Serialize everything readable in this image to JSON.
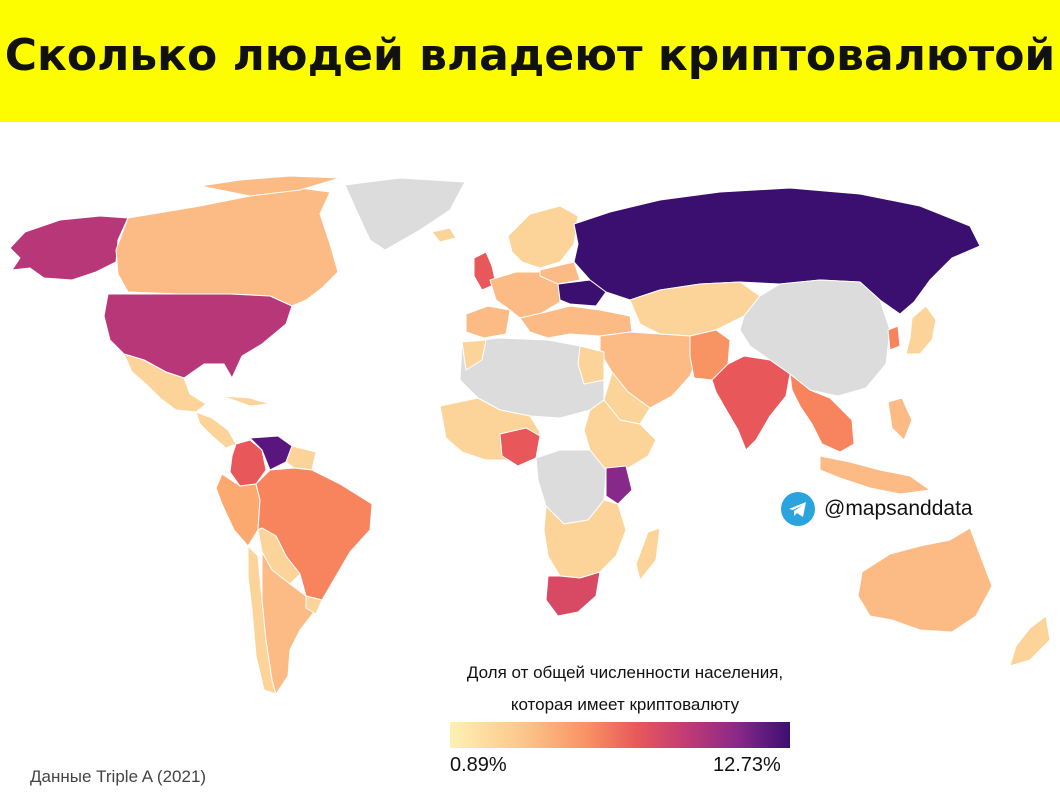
{
  "title": "Сколько людей владеют криптовалютой",
  "handle": "@mapsanddata",
  "legend": {
    "title_line1": "Доля от общей численности населения,",
    "title_line2": "которая имеет криптовалюту",
    "min_label": "0.89%",
    "max_label": "12.73%",
    "min_value": 0.89,
    "max_value": 12.73,
    "colors": [
      "#fdf1b2",
      "#fcc58a",
      "#f89364",
      "#e8585a",
      "#c03a75",
      "#87288a",
      "#3b0f70"
    ],
    "no_data_color": "#dcdcdc"
  },
  "source": "Данные Triple A (2021)",
  "icons": {
    "handle_icon": "telegram-icon"
  }
}
